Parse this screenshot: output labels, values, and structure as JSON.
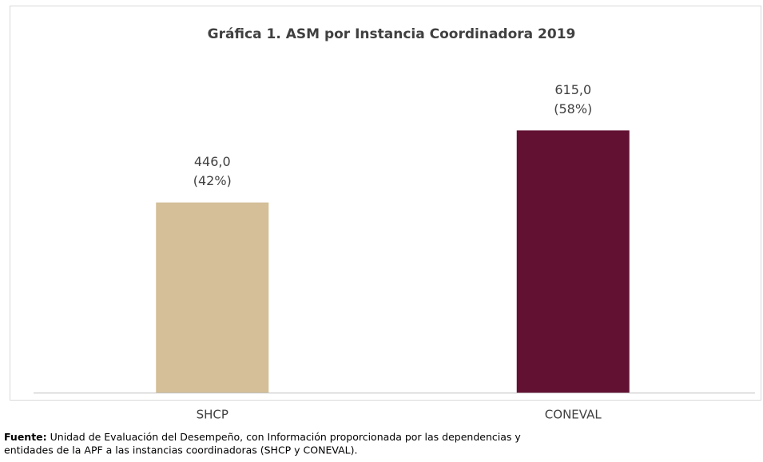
{
  "chart_data": {
    "type": "bar",
    "title": "Gráfica 1. ASM por Instancia Coordinadora 2019",
    "categories": [
      "SHCP",
      "CONEVAL"
    ],
    "values": [
      446,
      615
    ],
    "value_labels": [
      "446,0",
      "615,0"
    ],
    "shares": [
      42,
      58
    ],
    "share_labels": [
      "(42%)",
      "(58%)"
    ],
    "colors": [
      "#d4bf98",
      "#621132"
    ],
    "ylim": [
      0,
      700
    ],
    "source_label": "Fuente:",
    "source_lines": [
      "Unidad de Evaluación del Desempeño, con Información proporcionada por las dependencias y",
      "entidades de la APF a las instancias coordinadoras (SHCP y CONEVAL)."
    ]
  }
}
